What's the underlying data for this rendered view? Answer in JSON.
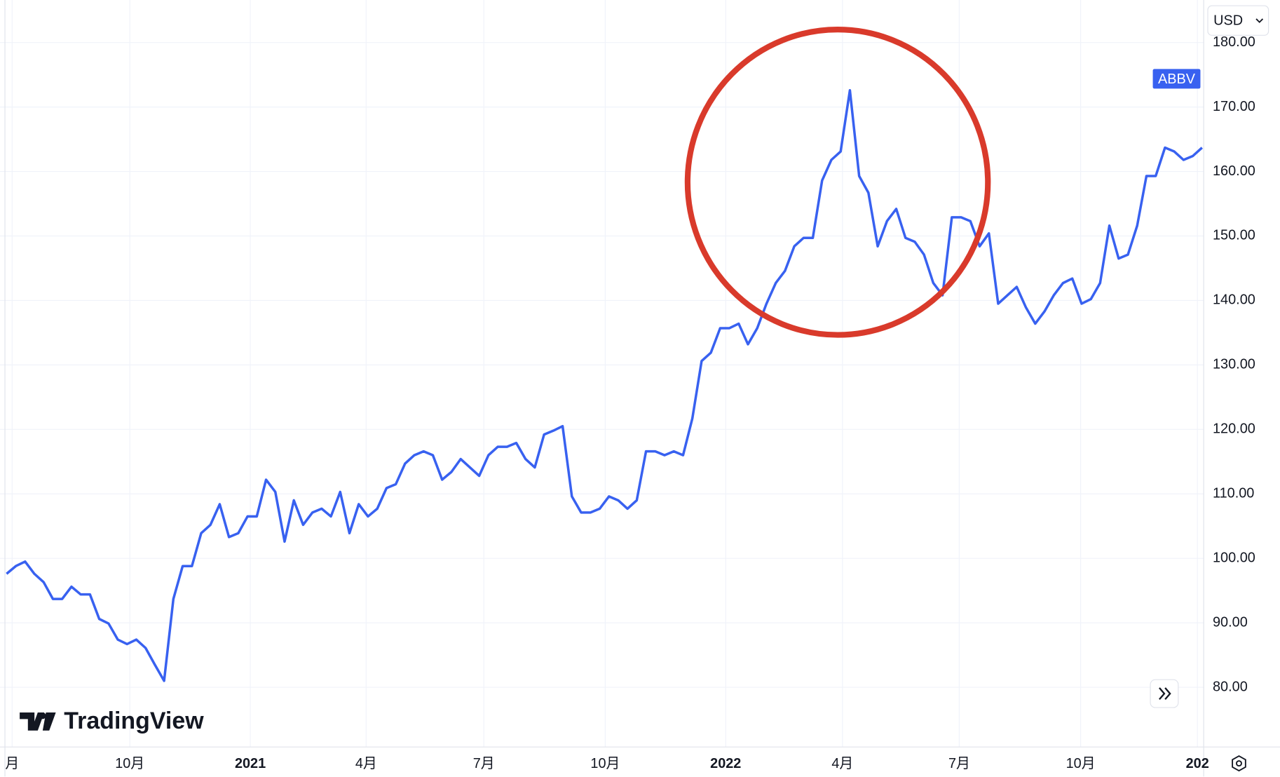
{
  "chart_data": {
    "type": "line",
    "currency": "USD",
    "watermark": "TradingView",
    "xlim": [
      0,
      129
    ],
    "xticks": [
      {
        "value": 0.6,
        "label": "月"
      },
      {
        "value": 13.3,
        "label": "10月"
      },
      {
        "value": 26.3,
        "label": "2021",
        "bold": true
      },
      {
        "value": 38.8,
        "label": "4月"
      },
      {
        "value": 51.5,
        "label": "7月"
      },
      {
        "value": 64.6,
        "label": "10月"
      },
      {
        "value": 77.6,
        "label": "2022",
        "bold": true
      },
      {
        "value": 90.2,
        "label": "4月"
      },
      {
        "value": 102.8,
        "label": "7月"
      },
      {
        "value": 115.9,
        "label": "10月"
      },
      {
        "value": 128.5,
        "label": "202",
        "bold": true
      }
    ],
    "ylim": [
      71,
      186.6
    ],
    "yticks": [
      {
        "value": 80,
        "label": "80.00"
      },
      {
        "value": 90,
        "label": "90.00"
      },
      {
        "value": 100,
        "label": "100.00"
      },
      {
        "value": 110,
        "label": "110.00"
      },
      {
        "value": 120,
        "label": "120.00"
      },
      {
        "value": 130,
        "label": "130.00"
      },
      {
        "value": 140,
        "label": "140.00"
      },
      {
        "value": 150,
        "label": "150.00"
      },
      {
        "value": 160,
        "label": "160.00"
      },
      {
        "value": 170,
        "label": "170.00"
      },
      {
        "value": 180,
        "label": "180.00"
      }
    ],
    "grid": true,
    "series": [
      {
        "name": "ABBV",
        "color": "#3861f0",
        "values": [
          97.6,
          98.8,
          99.5,
          97.6,
          96.3,
          93.7,
          93.7,
          95.6,
          94.4,
          94.4,
          90.6,
          89.9,
          87.4,
          86.7,
          87.4,
          86.1,
          83.5,
          81,
          93.7,
          98.8,
          98.8,
          103.9,
          105.2,
          108.4,
          103.3,
          103.9,
          106.5,
          106.5,
          112.2,
          110.3,
          102.6,
          109,
          105.2,
          107.1,
          107.7,
          106.5,
          110.3,
          103.9,
          108.4,
          106.5,
          107.7,
          110.9,
          111.5,
          114.7,
          116,
          116.6,
          116,
          112.2,
          113.4,
          115.4,
          114.1,
          112.8,
          116,
          117.3,
          117.3,
          117.9,
          115.4,
          114.1,
          119.2,
          119.8,
          120.5,
          109.6,
          107.1,
          107.1,
          107.7,
          109.6,
          109,
          107.7,
          109,
          116.6,
          116.6,
          116,
          116.6,
          116,
          121.7,
          130.6,
          131.9,
          135.7,
          135.7,
          136.4,
          133.2,
          135.7,
          139.5,
          142.7,
          144.6,
          148.4,
          149.7,
          149.7,
          158.6,
          161.8,
          163.1,
          172.6,
          159.3,
          156.7,
          148.4,
          152.3,
          154.2,
          149.7,
          149.1,
          147.1,
          142.7,
          140.8,
          152.9,
          152.9,
          152.3,
          148.4,
          150.4,
          139.5,
          140.8,
          142.1,
          138.9,
          136.4,
          138.3,
          140.8,
          142.7,
          143.4,
          139.5,
          140.2,
          142.7,
          151.6,
          146.5,
          147.1,
          151.6,
          159.3,
          159.3,
          163.7,
          163.1,
          161.8,
          162.4,
          163.7
        ]
      }
    ]
  }
}
